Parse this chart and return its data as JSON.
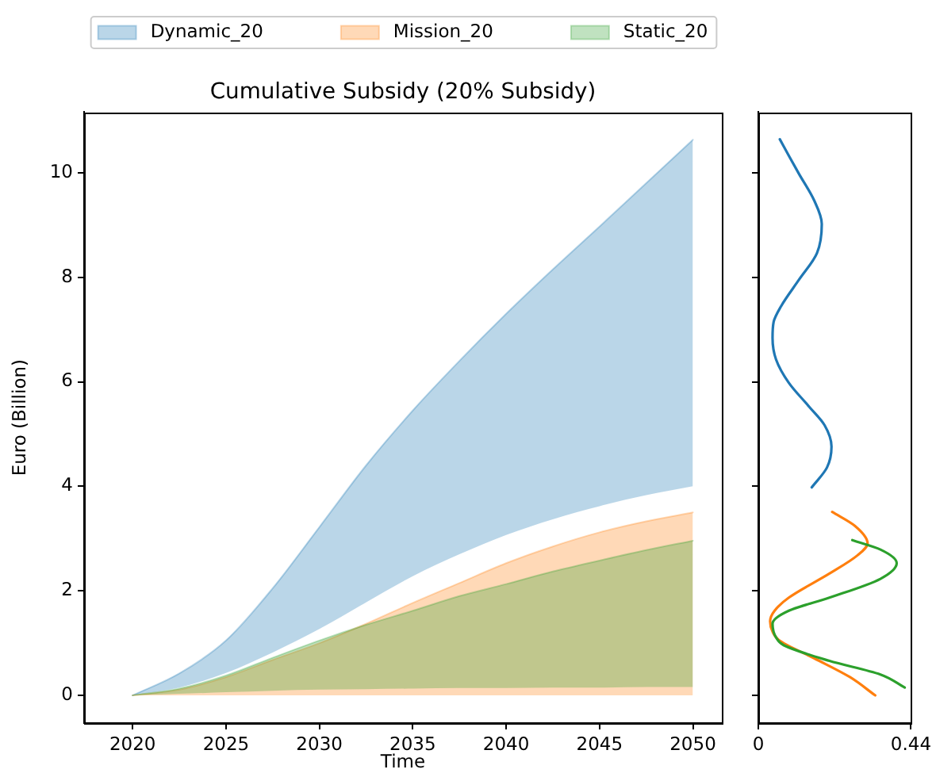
{
  "chart_data": [
    {
      "type": "line",
      "title": "Cumulative Subsidy (20% Subsidy)",
      "xlabel": "Time",
      "ylabel": "Euro (Billion)",
      "x": [
        2020,
        2022.5,
        2025,
        2027.5,
        2030,
        2032.5,
        2035,
        2037.5,
        2040,
        2042.5,
        2045,
        2047.5,
        2050
      ],
      "series": [
        {
          "name": "Dynamic_20",
          "color": "#bbd6e8",
          "values": [
            0,
            0.42,
            1.05,
            2.05,
            3.22,
            4.4,
            5.45,
            6.4,
            7.3,
            8.15,
            8.97,
            9.8,
            10.63
          ],
          "lower": [
            0,
            0.15,
            0.43,
            0.82,
            1.27,
            1.78,
            2.28,
            2.7,
            3.07,
            3.37,
            3.62,
            3.83,
            4.0
          ],
          "upper": [
            0,
            0.42,
            1.05,
            2.05,
            3.22,
            4.4,
            5.45,
            6.4,
            7.3,
            8.15,
            8.97,
            9.8,
            10.63
          ]
        },
        {
          "name": "Mission_20",
          "color": "#ffd9b7",
          "values": [
            0,
            0.11,
            0.35,
            0.68,
            1.0,
            1.37,
            1.77,
            2.15,
            2.53,
            2.85,
            3.12,
            3.33,
            3.5
          ],
          "lower": [
            0,
            0,
            0,
            0,
            0,
            0,
            0,
            0,
            0,
            0,
            0,
            0,
            0
          ],
          "upper": [
            0,
            0.11,
            0.35,
            0.68,
            1.0,
            1.37,
            1.77,
            2.15,
            2.53,
            2.85,
            3.12,
            3.33,
            3.5
          ]
        },
        {
          "name": "Static_20",
          "color": "#c0e2c0",
          "values": [
            0,
            0.13,
            0.38,
            0.72,
            1.05,
            1.35,
            1.62,
            1.9,
            2.13,
            2.37,
            2.58,
            2.78,
            2.96
          ],
          "lower": [
            0,
            0.03,
            0.06,
            0.09,
            0.11,
            0.12,
            0.13,
            0.14,
            0.14,
            0.15,
            0.15,
            0.16,
            0.16
          ],
          "upper": [
            0,
            0.13,
            0.38,
            0.72,
            1.05,
            1.35,
            1.62,
            1.9,
            2.13,
            2.37,
            2.58,
            2.78,
            2.96
          ]
        }
      ],
      "xlim": [
        2017.4,
        2051.55
      ],
      "xticks": [
        2020,
        2025,
        2030,
        2035,
        2040,
        2045,
        2050
      ],
      "ylim": [
        -0.53,
        11.16
      ],
      "yticks": [
        0,
        2,
        4,
        6,
        8,
        10
      ],
      "legend": "top",
      "marker": "none"
    },
    {
      "type": "line",
      "series": [
        {
          "color": "#1f77b4",
          "x": [
            0.062,
            0.09,
            0.117,
            0.161,
            0.183,
            0.169,
            0.117,
            0.066,
            0.044,
            0.041,
            0.051,
            0.088,
            0.147,
            0.191,
            0.211,
            0.198,
            0.154
          ],
          "values": [
            10.64,
            10.3,
            9.98,
            9.47,
            9.02,
            8.46,
            7.95,
            7.45,
            7.14,
            6.84,
            6.43,
            5.98,
            5.52,
            5.17,
            4.76,
            4.36,
            3.98
          ]
        },
        {
          "color": "#ff7f0e",
          "x": [
            0.213,
            0.279,
            0.315,
            0.286,
            0.205,
            0.088,
            0.047,
            0.034,
            0.041,
            0.059,
            0.161,
            0.264,
            0.337
          ],
          "values": [
            3.51,
            3.24,
            2.91,
            2.68,
            2.33,
            1.87,
            1.62,
            1.42,
            1.22,
            1.06,
            0.71,
            0.35,
            0.0
          ]
        },
        {
          "color": "#2ca02c",
          "x": [
            0.271,
            0.352,
            0.399,
            0.352,
            0.205,
            0.088,
            0.041,
            0.051,
            0.073,
            0.205,
            0.352,
            0.422
          ],
          "values": [
            2.97,
            2.79,
            2.53,
            2.23,
            1.87,
            1.62,
            1.37,
            1.11,
            0.96,
            0.66,
            0.4,
            0.15
          ]
        }
      ],
      "xlim": [
        0,
        0.44
      ],
      "xticks": [
        0,
        0.44
      ],
      "ylim": [
        -0.53,
        11.16
      ],
      "yticks": [
        0,
        2,
        4,
        6,
        8,
        10
      ],
      "tick_labels": "x",
      "marker": "none"
    }
  ]
}
